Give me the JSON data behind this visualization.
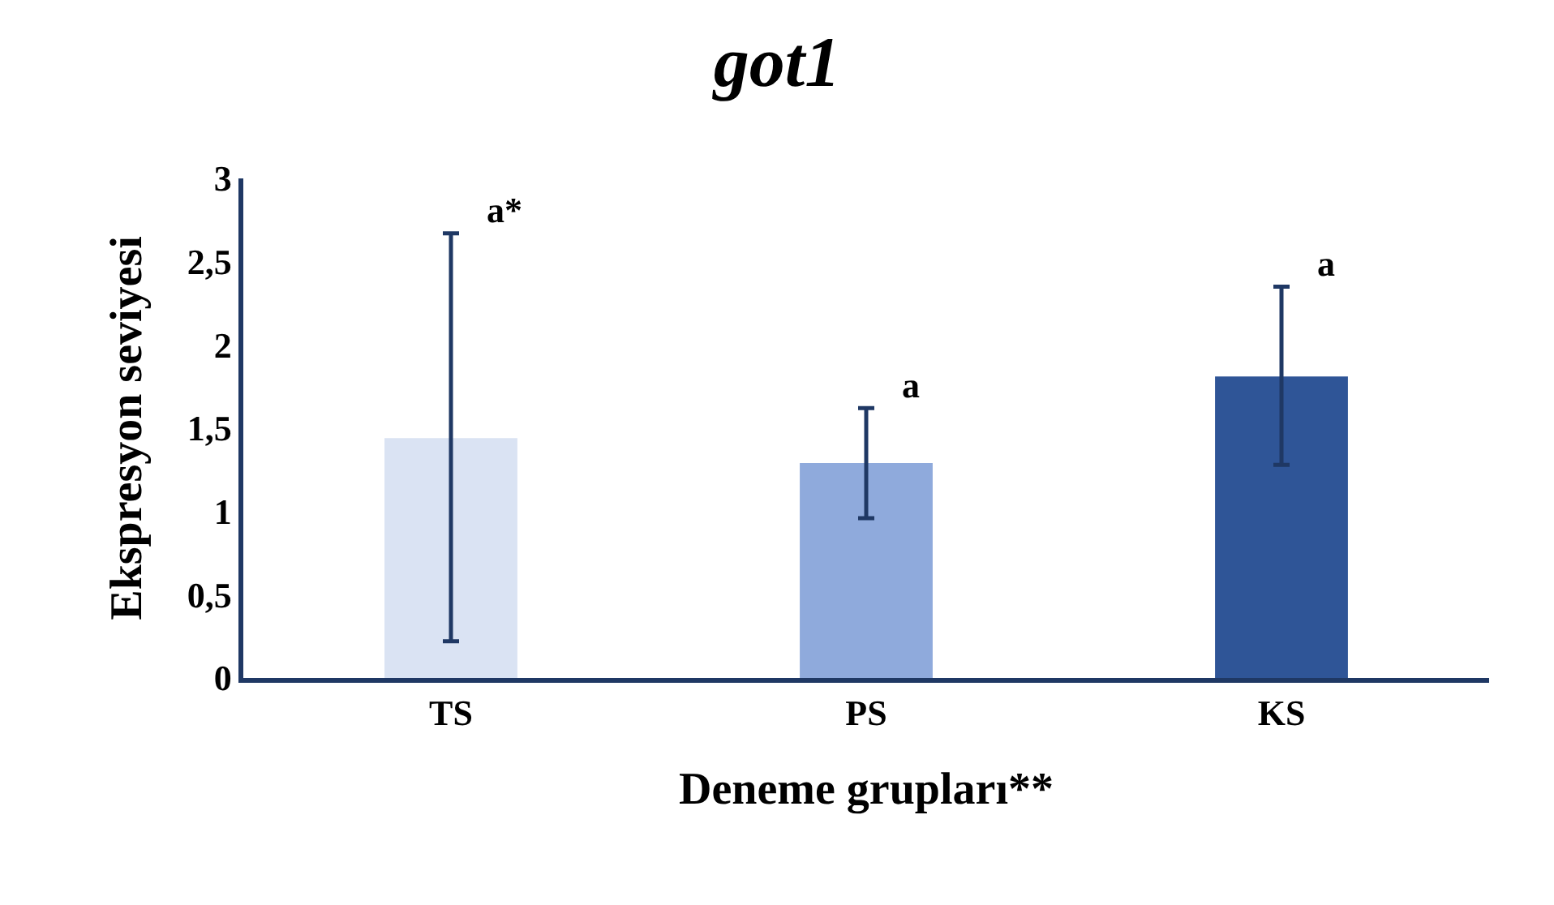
{
  "chart_data": {
    "type": "bar",
    "title": "got1",
    "xlabel": "Deneme grupları**",
    "ylabel": "Ekspresyon seviyesi",
    "categories": [
      "TS",
      "PS",
      "KS"
    ],
    "values": [
      1.44,
      1.29,
      1.81
    ],
    "colors": [
      "#dae3f3",
      "#8faadc",
      "#2f5597"
    ],
    "errors": [
      [
        0.22,
        2.67
      ],
      [
        0.96,
        1.62
      ],
      [
        1.28,
        2.35
      ]
    ],
    "ylim": [
      0,
      3
    ],
    "yticks": [
      0,
      {
        "value": 0.5,
        "label": "0,5"
      },
      1,
      {
        "value": 1.5,
        "label": "1,5"
      },
      2,
      {
        "value": 2.5,
        "label": "2,5"
      },
      3
    ],
    "annotations": [
      {
        "text": "a*",
        "x": "TS",
        "y": 2.67
      },
      {
        "text": "a",
        "x": "PS",
        "y": 1.62
      },
      {
        "text": "a",
        "x": "KS",
        "y": 2.35
      }
    ],
    "grid": false
  }
}
